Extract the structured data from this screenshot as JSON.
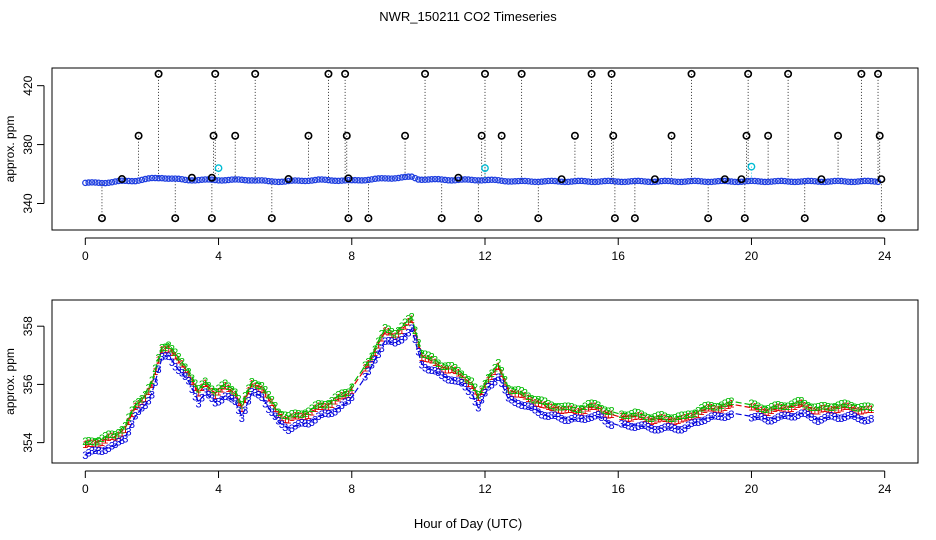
{
  "title": "NWR_150211  CO2 Timeseries",
  "chart_data": [
    {
      "type": "scatter",
      "panel": "top",
      "ylabel": "approx. ppm",
      "xlabel": "",
      "xlim": [
        -1,
        25
      ],
      "ylim": [
        322,
        432
      ],
      "xticks": [
        0,
        4,
        8,
        12,
        16,
        20,
        24
      ],
      "yticks": [
        340,
        380,
        420
      ],
      "grid": false,
      "baseline": {
        "x": [
          0,
          0.5,
          1,
          1.5,
          2,
          2.3,
          3,
          3.5,
          4,
          5,
          5.5,
          6,
          7,
          8,
          9,
          9.8,
          10,
          11,
          12,
          13,
          14,
          15,
          16,
          20,
          24
        ],
        "values": [
          354,
          354,
          355,
          355.5,
          357,
          357.5,
          356,
          356,
          356,
          356,
          355,
          355,
          356,
          355.5,
          357,
          358,
          356.5,
          356,
          356,
          355,
          355,
          355,
          355,
          355,
          355
        ]
      },
      "flag_high_x": [
        2.2,
        3.9,
        5.1,
        7.3,
        7.8,
        10.2,
        12.0,
        13.1,
        15.2,
        15.8,
        18.2,
        19.9,
        21.1,
        23.3,
        23.8
      ],
      "flag_high_y": 428,
      "flag_mid_x": [
        1.6,
        3.85,
        4.5,
        6.7,
        7.85,
        9.6,
        11.9,
        12.5,
        14.7,
        15.85,
        17.6,
        19.85,
        20.5,
        22.6,
        23.85
      ],
      "flag_mid_y": 386,
      "flag_low_x": [
        0.5,
        2.7,
        3.8,
        5.6,
        7.9,
        8.5,
        10.7,
        11.8,
        13.6,
        15.9,
        16.5,
        18.7,
        19.8,
        21.6,
        23.9
      ],
      "flag_low_y": 330,
      "flag_base_x": [
        1.1,
        3.2,
        3.8,
        6.1,
        7.9,
        11.2,
        14.3,
        17.1,
        19.2,
        19.7,
        22.1,
        23.9
      ],
      "cyan_points": [
        {
          "x": 4.0,
          "y": 364
        },
        {
          "x": 12.0,
          "y": 364
        },
        {
          "x": 20.0,
          "y": 365
        }
      ]
    },
    {
      "type": "scatter",
      "panel": "bottom",
      "ylabel": "approx. ppm",
      "xlabel": "Hour of Day (UTC)",
      "xlim": [
        -1,
        25
      ],
      "ylim": [
        353.3,
        358.9
      ],
      "xticks": [
        0,
        4,
        8,
        12,
        16,
        20,
        24
      ],
      "yticks": [
        354,
        356,
        358
      ],
      "grid": false,
      "legend": "none",
      "series": [
        {
          "name": "1",
          "color": "#dd0000",
          "offset": 0.2
        },
        {
          "name": "2",
          "color": "#00bb00",
          "offset": 0.3
        },
        {
          "name": "3",
          "color": "#0000dd",
          "offset": -0.1
        }
      ],
      "x": [
        0,
        0.3,
        0.6,
        0.9,
        1.2,
        1.5,
        1.8,
        2.0,
        2.3,
        2.5,
        2.8,
        3.1,
        3.4,
        3.6,
        3.9,
        4.2,
        4.5,
        4.7,
        5.0,
        5.3,
        5.5,
        5.8,
        6.1,
        6.4,
        6.7,
        7.0,
        7.3,
        7.6,
        7.9,
        8.2,
        8.5,
        8.8,
        9.0,
        9.3,
        9.6,
        9.8,
        10.1,
        10.4,
        10.7,
        11.0,
        11.3,
        11.6,
        11.8,
        12.1,
        12.4,
        12.7,
        13.0,
        13.3,
        13.6,
        13.9,
        14.2,
        14.5,
        14.8,
        15.1,
        15.4,
        15.7,
        16.0,
        16.5,
        17.0,
        17.5,
        18.0,
        18.5,
        19.0,
        19.5,
        20.0,
        20.5,
        21.0,
        21.5,
        22.0,
        22.5,
        23.0,
        23.5
      ],
      "values": [
        353.7,
        353.8,
        353.9,
        354.0,
        354.3,
        355.0,
        355.4,
        355.8,
        357.0,
        357.1,
        356.6,
        356.2,
        355.5,
        355.8,
        355.5,
        355.7,
        355.5,
        355.0,
        355.8,
        355.7,
        355.3,
        354.8,
        354.6,
        354.7,
        354.8,
        355.0,
        355.1,
        355.3,
        355.5,
        356.0,
        356.5,
        357.2,
        357.6,
        357.5,
        357.8,
        358.0,
        356.8,
        356.6,
        356.4,
        356.3,
        356.1,
        355.8,
        355.3,
        356.0,
        356.4,
        355.6,
        355.5,
        355.3,
        355.2,
        355.0,
        355.0,
        354.9,
        354.9,
        355.0,
        355.0,
        354.8,
        354.7,
        354.7,
        354.6,
        354.6,
        354.6,
        354.9,
        355.0,
        355.1,
        355.0,
        354.9,
        355.0,
        355.1,
        354.9,
        355.0,
        355.0,
        354.9
      ]
    }
  ]
}
